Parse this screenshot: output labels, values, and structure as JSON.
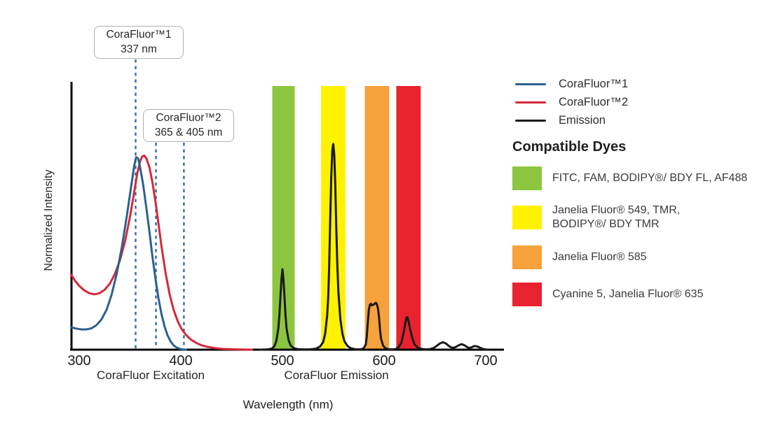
{
  "colors": {
    "corafluor1_blue": "#2A618F",
    "corafluor2_red": "#D62839",
    "emission_black": "#1A1A1A",
    "dashed_marker": "#38699E",
    "band_green": "#8CC63F",
    "band_yellow": "#FFF200",
    "band_orange": "#F7A23B",
    "band_red": "#E8232F",
    "axis": "#000000"
  },
  "annotations": [
    {
      "title": "CoraFluor™1",
      "subtitle": "337 nm",
      "line_labels": [
        "337"
      ],
      "lines_plot_nm": [
        355.5
      ],
      "line_top_y": 85
    },
    {
      "title": "CoraFluor™2",
      "subtitle": "365 & 405 nm",
      "line_labels": [
        "365",
        "405"
      ],
      "lines_plot_nm": [
        375.5,
        403
      ],
      "line_top_y": 204
    }
  ],
  "axis": {
    "xlabel": "Wavelength (nm)",
    "ylabel": "Normalized Intensity",
    "x_caption_left": "CoraFluor Excitation",
    "x_caption_right": "CoraFluor Emission"
  },
  "legend": {
    "items": [
      {
        "key": "corafluor1",
        "label": "CoraFluor™1",
        "color": "#2A618F"
      },
      {
        "key": "corafluor2",
        "label": "CoraFluor™2",
        "color": "#D62839"
      },
      {
        "key": "emission",
        "label": "Emission",
        "color": "#1A1A1A"
      }
    ]
  },
  "compatible_dyes": {
    "heading": "Compatible Dyes",
    "items": [
      {
        "key": "green",
        "color": "#8CC63F",
        "label": "FITC, FAM, BODIPY®/ BDY FL, AF488"
      },
      {
        "key": "yellow",
        "color": "#FFF200",
        "label": "Janelia Fluor® 549, TMR,\nBODIPY®/ BDY TMR"
      },
      {
        "key": "orange",
        "color": "#F7A23B",
        "label": "Janelia Fluor® 585"
      },
      {
        "key": "red",
        "color": "#E8232F",
        "label": "Cyanine 5, Janelia Fluor® 635"
      }
    ]
  },
  "chart_data": {
    "type": "line",
    "title": "",
    "xlabel": "Wavelength (nm)",
    "ylabel": "Normalized Intensity",
    "xlim": [
      290,
      718
    ],
    "ylim": [
      0,
      1.05
    ],
    "grid": false,
    "x_ticks": [
      300,
      400,
      500,
      600,
      700
    ],
    "x_captions": [
      "CoraFluor Excitation",
      "CoraFluor Emission"
    ],
    "excitation_maxima": {
      "CoraFluor1": "337 nm",
      "CoraFluor2": "365 & 405 nm"
    },
    "bands": [
      {
        "key": "green",
        "range_nm": [
          490,
          512
        ],
        "color": "#8CC63F",
        "dyes": "FITC, FAM, BODIPY®/ BDY FL, AF488"
      },
      {
        "key": "yellow",
        "range_nm": [
          538,
          562
        ],
        "color": "#FFF200",
        "dyes": "Janelia Fluor® 549, TMR, BODIPY®/ BDY TMR"
      },
      {
        "key": "orange",
        "range_nm": [
          581,
          605
        ],
        "color": "#F7A23B",
        "dyes": "Janelia Fluor® 585"
      },
      {
        "key": "red",
        "range_nm": [
          612,
          636
        ],
        "color": "#E8232F",
        "dyes": "Cyanine 5, Janelia Fluor® 635"
      }
    ],
    "series": [
      {
        "key": "corafluor2-excitation",
        "name": "CoraFluor™2",
        "color": "#D62839",
        "width": 3,
        "points": [
          [
            292,
            0.285
          ],
          [
            296,
            0.261
          ],
          [
            300,
            0.242
          ],
          [
            305,
            0.225
          ],
          [
            310,
            0.214
          ],
          [
            315,
            0.21
          ],
          [
            320,
            0.214
          ],
          [
            325,
            0.227
          ],
          [
            330,
            0.25
          ],
          [
            335,
            0.286
          ],
          [
            340,
            0.338
          ],
          [
            345,
            0.41
          ],
          [
            350,
            0.505
          ],
          [
            354,
            0.595
          ],
          [
            357,
            0.665
          ],
          [
            360,
            0.715
          ],
          [
            362,
            0.733
          ],
          [
            364,
            0.736
          ],
          [
            366,
            0.726
          ],
          [
            369,
            0.693
          ],
          [
            372,
            0.636
          ],
          [
            375,
            0.562
          ],
          [
            378,
            0.478
          ],
          [
            381,
            0.392
          ],
          [
            385,
            0.29
          ],
          [
            389,
            0.21
          ],
          [
            393,
            0.15
          ],
          [
            397,
            0.107
          ],
          [
            401,
            0.077
          ],
          [
            405,
            0.056
          ],
          [
            410,
            0.038
          ],
          [
            415,
            0.026
          ],
          [
            420,
            0.017
          ],
          [
            426,
            0.011
          ],
          [
            433,
            0.006
          ],
          [
            441,
            0.003
          ],
          [
            450,
            0.0015
          ],
          [
            460,
            0.0006
          ],
          [
            470,
            0
          ]
        ]
      },
      {
        "key": "corafluor1-excitation",
        "name": "CoraFluor™1",
        "color": "#2A618F",
        "width": 3,
        "points": [
          [
            292,
            0.085
          ],
          [
            297,
            0.08
          ],
          [
            302,
            0.077
          ],
          [
            307,
            0.077
          ],
          [
            312,
            0.081
          ],
          [
            317,
            0.093
          ],
          [
            322,
            0.115
          ],
          [
            327,
            0.152
          ],
          [
            332,
            0.21
          ],
          [
            337,
            0.29
          ],
          [
            342,
            0.39
          ],
          [
            347,
            0.51
          ],
          [
            351,
            0.615
          ],
          [
            354,
            0.695
          ],
          [
            356,
            0.73
          ],
          [
            358,
            0.725
          ],
          [
            360,
            0.69
          ],
          [
            363,
            0.625
          ],
          [
            366,
            0.54
          ],
          [
            369,
            0.45
          ],
          [
            372,
            0.355
          ],
          [
            375,
            0.27
          ],
          [
            378,
            0.195
          ],
          [
            381,
            0.135
          ],
          [
            384,
            0.088
          ],
          [
            387,
            0.054
          ],
          [
            390,
            0.031
          ],
          [
            393,
            0.016
          ],
          [
            396,
            0.008
          ],
          [
            399,
            0.003
          ],
          [
            402,
            0.001
          ],
          [
            405,
            0
          ]
        ]
      },
      {
        "key": "emission",
        "name": "Emission",
        "color": "#1A1A1A",
        "width": 3,
        "points": [
          [
            478,
            0
          ],
          [
            486,
            0.001
          ],
          [
            490,
            0.005
          ],
          [
            492,
            0.013
          ],
          [
            494,
            0.033
          ],
          [
            496,
            0.082
          ],
          [
            497,
            0.13
          ],
          [
            498,
            0.2
          ],
          [
            499,
            0.268
          ],
          [
            500,
            0.305
          ],
          [
            501,
            0.268
          ],
          [
            502,
            0.2
          ],
          [
            503,
            0.132
          ],
          [
            504,
            0.082
          ],
          [
            506,
            0.036
          ],
          [
            508,
            0.016
          ],
          [
            511,
            0.006
          ],
          [
            515,
            0.002
          ],
          [
            520,
            0.001
          ],
          [
            527,
            0.001
          ],
          [
            533,
            0.004
          ],
          [
            537,
            0.012
          ],
          [
            540,
            0.028
          ],
          [
            542,
            0.06
          ],
          [
            544,
            0.13
          ],
          [
            545,
            0.2
          ],
          [
            546,
            0.32
          ],
          [
            547,
            0.49
          ],
          [
            548,
            0.655
          ],
          [
            549,
            0.755
          ],
          [
            550,
            0.78
          ],
          [
            551,
            0.74
          ],
          [
            552,
            0.62
          ],
          [
            553,
            0.46
          ],
          [
            554,
            0.32
          ],
          [
            555,
            0.22
          ],
          [
            557,
            0.115
          ],
          [
            559,
            0.06
          ],
          [
            561,
            0.032
          ],
          [
            564,
            0.014
          ],
          [
            567,
            0.006
          ],
          [
            571,
            0.002
          ],
          [
            575,
            0.001
          ],
          [
            578,
            0.002
          ],
          [
            580,
            0.006
          ],
          [
            582,
            0.02
          ],
          [
            583,
            0.05
          ],
          [
            584,
            0.105
          ],
          [
            585,
            0.152
          ],
          [
            586,
            0.17
          ],
          [
            587,
            0.174
          ],
          [
            588,
            0.168
          ],
          [
            590,
            0.172
          ],
          [
            592,
            0.178
          ],
          [
            593,
            0.172
          ],
          [
            594,
            0.156
          ],
          [
            595,
            0.122
          ],
          [
            596,
            0.076
          ],
          [
            597,
            0.042
          ],
          [
            599,
            0.016
          ],
          [
            601,
            0.006
          ],
          [
            604,
            0.002
          ],
          [
            608,
            0.001
          ],
          [
            611,
            0.002
          ],
          [
            614,
            0.008
          ],
          [
            617,
            0.026
          ],
          [
            619,
            0.06
          ],
          [
            621,
            0.103
          ],
          [
            622,
            0.122
          ],
          [
            623,
            0.124
          ],
          [
            624,
            0.108
          ],
          [
            626,
            0.072
          ],
          [
            628,
            0.04
          ],
          [
            630,
            0.02
          ],
          [
            633,
            0.008
          ],
          [
            637,
            0.003
          ],
          [
            641,
            0.001
          ],
          [
            645,
            0.002
          ],
          [
            649,
            0.007
          ],
          [
            652,
            0.015
          ],
          [
            655,
            0.024
          ],
          [
            658,
            0.028
          ],
          [
            661,
            0.023
          ],
          [
            664,
            0.013
          ],
          [
            667,
            0.007
          ],
          [
            670,
            0.009
          ],
          [
            673,
            0.016
          ],
          [
            676,
            0.021
          ],
          [
            679,
            0.017
          ],
          [
            682,
            0.009
          ],
          [
            684,
            0.006
          ],
          [
            686,
            0.009
          ],
          [
            689,
            0.014
          ],
          [
            692,
            0.012
          ],
          [
            695,
            0.006
          ],
          [
            698,
            0.002
          ],
          [
            702,
            0
          ]
        ]
      }
    ]
  }
}
